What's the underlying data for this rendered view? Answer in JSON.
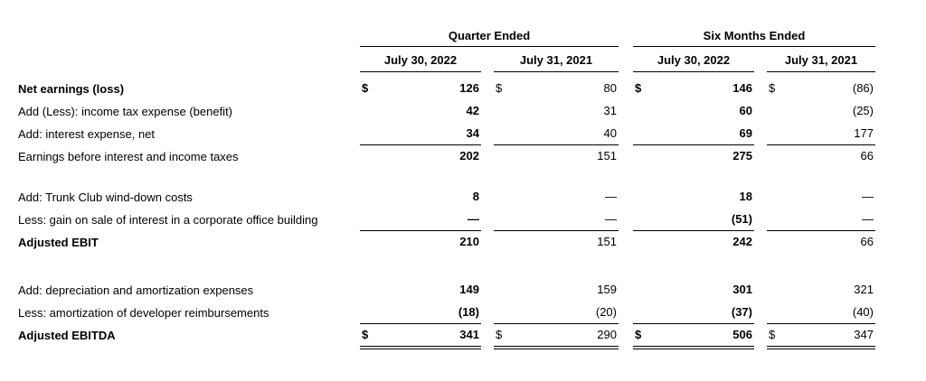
{
  "colors": {
    "text": "#000000",
    "background": "#ffffff",
    "rule": "#000000"
  },
  "document": {
    "group_headers": [
      "Quarter Ended",
      "Six Months Ended"
    ],
    "column_headers": [
      "July 30, 2022",
      "July 31, 2021",
      "July 30, 2022",
      "July 31, 2021"
    ],
    "rows": [
      {
        "label": "Net earnings (loss)",
        "dollars": [
          "$",
          "$",
          "$",
          "$"
        ],
        "values": [
          "126",
          "80",
          "146",
          "(86)"
        ]
      },
      {
        "label": "Add (Less): income tax expense (benefit)",
        "values": [
          "42",
          "31",
          "60",
          "(25)"
        ]
      },
      {
        "label": "Add: interest expense, net",
        "values": [
          "34",
          "40",
          "69",
          "177"
        ]
      },
      {
        "label": "Earnings before interest and income taxes",
        "values": [
          "202",
          "151",
          "275",
          "66"
        ]
      },
      {
        "label": "Add: Trunk Club wind-down costs",
        "values": [
          "8",
          "—",
          "18",
          "—"
        ]
      },
      {
        "label": "Less: gain on sale of interest in a corporate office building",
        "values": [
          "—",
          "—",
          "(51)",
          "—"
        ]
      },
      {
        "label": "Adjusted EBIT",
        "values": [
          "210",
          "151",
          "242",
          "66"
        ]
      },
      {
        "label": "Add: depreciation and amortization expenses",
        "values": [
          "149",
          "159",
          "301",
          "321"
        ]
      },
      {
        "label": "Less: amortization of developer reimbursements",
        "values": [
          "(18)",
          "(20)",
          "(37)",
          "(40)"
        ]
      },
      {
        "label": "Adjusted EBITDA",
        "dollars": [
          "$",
          "$",
          "$",
          "$"
        ],
        "values": [
          "341",
          "290",
          "506",
          "347"
        ]
      }
    ]
  }
}
